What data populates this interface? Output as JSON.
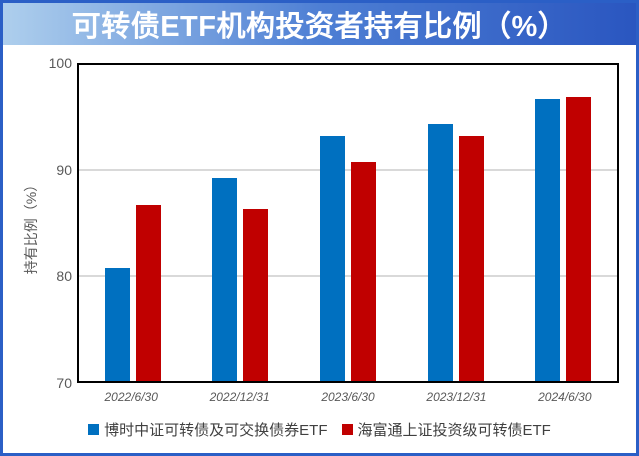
{
  "title": "可转债ETF机构投资者持有比例（%）",
  "colors": {
    "series_blue": "#0070C0",
    "series_red": "#C00000",
    "title_gradient_left": "#AECFED",
    "title_gradient_right": "#2A56C0",
    "gridline": "#D9D9D9",
    "axis_text": "#595959",
    "frame_border": "#2B5FC6"
  },
  "chart_data": {
    "type": "bar",
    "title": "可转债ETF机构投资者持有比例（%）",
    "xlabel": "",
    "ylabel": "持有比例（%）",
    "ylim": [
      70,
      100
    ],
    "yticks": [
      70,
      80,
      90,
      100
    ],
    "grid": true,
    "legend_position": "bottom",
    "categories": [
      "2022/6/30",
      "2022/12/31",
      "2023/6/30",
      "2023/12/31",
      "2024/6/30"
    ],
    "series": [
      {
        "name": "博时中证可转债及可交换债券ETF",
        "color": "#0070C0",
        "values": [
          80.7,
          89.3,
          93.3,
          94.4,
          96.8
        ]
      },
      {
        "name": "海富通上证投资级可转债ETF",
        "color": "#C00000",
        "values": [
          86.7,
          86.3,
          90.8,
          93.3,
          97.0
        ]
      }
    ]
  }
}
